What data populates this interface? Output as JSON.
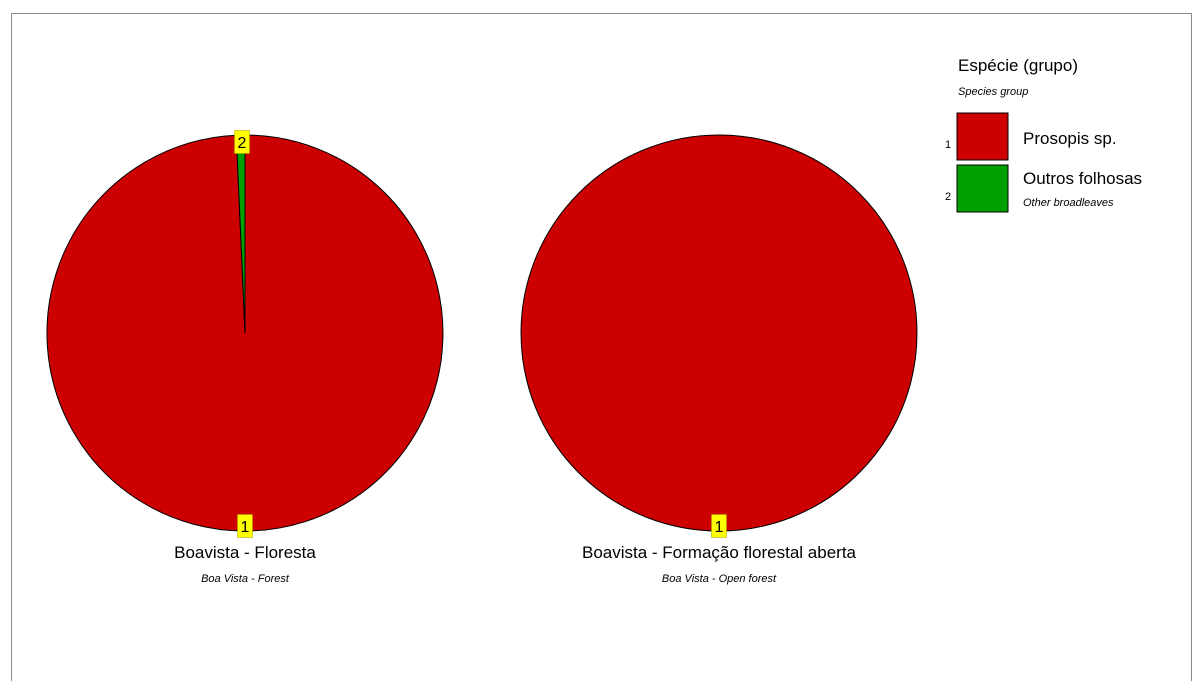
{
  "chart_data": {
    "type": "pie",
    "legend": {
      "title": "Espécie (grupo)",
      "subtitle": "Species group",
      "position": "top-right",
      "entries": [
        {
          "id": "1",
          "name": "Prosopis sp.",
          "subname": "",
          "color": "#cc0000"
        },
        {
          "id": "2",
          "name": "Outros folhosas",
          "subname": "Other broadleaves",
          "color": "#00a000"
        }
      ]
    },
    "pies": [
      {
        "title": "Boavista - Floresta",
        "subtitle": "Boa Vista - Forest",
        "slices": [
          {
            "series_id": "1",
            "value": 99.3,
            "label": "1"
          },
          {
            "series_id": "2",
            "value": 0.7,
            "label": "2"
          }
        ]
      },
      {
        "title": "Boavista - Formação florestal aberta",
        "subtitle": "Boa Vista - Open forest",
        "slices": [
          {
            "series_id": "1",
            "value": 100,
            "label": "1"
          }
        ]
      }
    ]
  }
}
